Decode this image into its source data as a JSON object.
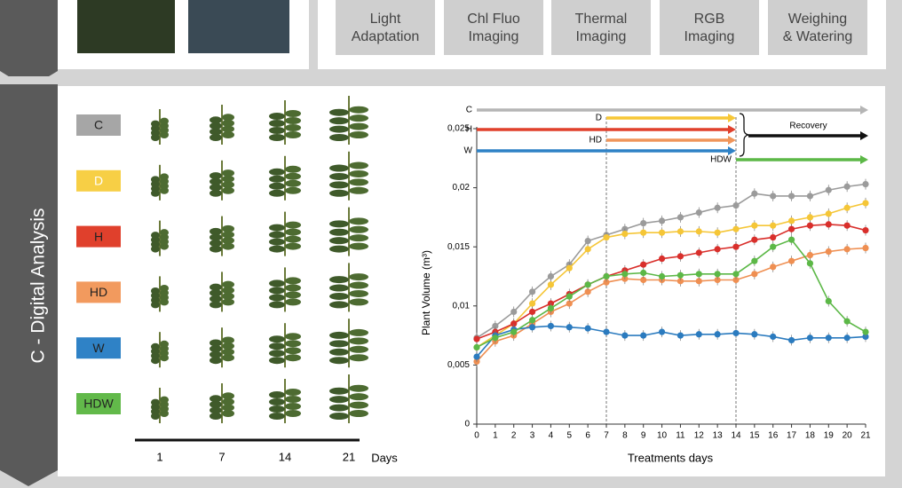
{
  "top_panel": {
    "steps": [
      "Light\nAdaptation",
      "Chl Fluo\nImaging",
      "Thermal\nImaging",
      "RGB\nImaging",
      "Weighing\n& Watering"
    ]
  },
  "side_label": "C - Digital Analysis",
  "treatments": [
    {
      "label": "C",
      "color": "#a6a6a6"
    },
    {
      "label": "D",
      "color": "#f7cf45"
    },
    {
      "label": "H",
      "color": "#e0402c"
    },
    {
      "label": "HD",
      "color": "#f29a5e"
    },
    {
      "label": "W",
      "color": "#2f82c6"
    },
    {
      "label": "HDW",
      "color": "#62b94a"
    }
  ],
  "days": {
    "values": [
      1,
      7,
      14,
      21
    ],
    "label": "Days"
  },
  "chart_data": {
    "type": "line",
    "xlabel": "Treatments days",
    "ylabel": "Plant Volume (m³)",
    "x": [
      0,
      1,
      2,
      3,
      4,
      5,
      6,
      7,
      8,
      9,
      10,
      11,
      12,
      13,
      14,
      15,
      16,
      17,
      18,
      19,
      20,
      21
    ],
    "xlim": [
      0,
      21
    ],
    "xticks": [
      0,
      1,
      2,
      3,
      4,
      5,
      6,
      7,
      8,
      9,
      10,
      11,
      12,
      13,
      14,
      15,
      16,
      17,
      18,
      19,
      20,
      21
    ],
    "ylim": [
      0,
      0.025
    ],
    "yticks": [
      0,
      {
        "value": 0.005,
        "label": "0,005"
      },
      {
        "value": 0.01,
        "label": "0,01"
      },
      {
        "value": 0.015,
        "label": "0,015"
      },
      {
        "value": 0.02,
        "label": "0,02"
      },
      {
        "value": 0.025,
        "label": "0,025"
      }
    ],
    "vlines": [
      7,
      14
    ],
    "series": [
      {
        "name": "C",
        "color": "#9b9b9b",
        "values": [
          0.0073,
          0.0083,
          0.0095,
          0.0112,
          0.0125,
          0.0135,
          0.0155,
          0.016,
          0.0165,
          0.017,
          0.0172,
          0.0175,
          0.0179,
          0.0183,
          0.0185,
          0.0195,
          0.0193,
          0.0193,
          0.0193,
          0.0198,
          0.0201,
          0.0203
        ]
      },
      {
        "name": "D",
        "color": "#f5c637",
        "values": [
          0.0065,
          0.0075,
          0.0085,
          0.0102,
          0.0118,
          0.0132,
          0.0148,
          0.0158,
          0.0161,
          0.0162,
          0.0162,
          0.0163,
          0.0163,
          0.0162,
          0.0165,
          0.0168,
          0.0168,
          0.0172,
          0.0175,
          0.0178,
          0.0183,
          0.0187
        ]
      },
      {
        "name": "H",
        "color": "#d92f2b",
        "values": [
          0.0072,
          0.0078,
          0.0085,
          0.0095,
          0.0102,
          0.011,
          0.0118,
          0.0125,
          0.013,
          0.0135,
          0.014,
          0.0142,
          0.0145,
          0.0148,
          0.015,
          0.0156,
          0.0158,
          0.0165,
          0.0168,
          0.0169,
          0.0168,
          0.0164
        ]
      },
      {
        "name": "HD",
        "color": "#ef8f52",
        "values": [
          0.0053,
          0.007,
          0.0075,
          0.0085,
          0.0095,
          0.0102,
          0.0112,
          0.012,
          0.0123,
          0.0122,
          0.0122,
          0.0121,
          0.0121,
          0.0122,
          0.0122,
          0.0127,
          0.0133,
          0.0138,
          0.0143,
          0.0146,
          0.0148,
          0.0149
        ]
      },
      {
        "name": "W",
        "color": "#2b7bbf",
        "values": [
          0.0057,
          0.0075,
          0.008,
          0.0082,
          0.0083,
          0.0082,
          0.0081,
          0.0078,
          0.0075,
          0.0075,
          0.0078,
          0.0075,
          0.0076,
          0.0076,
          0.0077,
          0.0076,
          0.0074,
          0.0071,
          0.0073,
          0.0073,
          0.0073,
          0.0074
        ]
      },
      {
        "name": "HDW",
        "color": "#5cb847",
        "values": [
          0.0065,
          0.0073,
          0.0078,
          0.0088,
          0.0098,
          0.0108,
          0.0118,
          0.0125,
          0.0127,
          0.0128,
          0.0125,
          0.0126,
          0.0127,
          0.0127,
          0.0127,
          0.0138,
          0.015,
          0.0156,
          0.0136,
          0.0104,
          0.0087,
          0.0078
        ]
      }
    ],
    "annotations": [
      {
        "label": "C",
        "start": 0,
        "end": 21,
        "color": "#b5b5b5"
      },
      {
        "label": "D",
        "start": 7,
        "end": 14,
        "color": "#f7c736"
      },
      {
        "label": "H",
        "start": 0,
        "end": 14,
        "color": "#e0402c"
      },
      {
        "label": "HD",
        "start": 7,
        "end": 14,
        "color": "#f0955a"
      },
      {
        "label": "W",
        "start": 0,
        "end": 14,
        "color": "#2f82c6"
      },
      {
        "label": "Recovery",
        "start": 14,
        "end": 21,
        "color": "#111111"
      },
      {
        "label": "HDW",
        "start": 14,
        "end": 21,
        "color": "#5cb847"
      }
    ]
  }
}
